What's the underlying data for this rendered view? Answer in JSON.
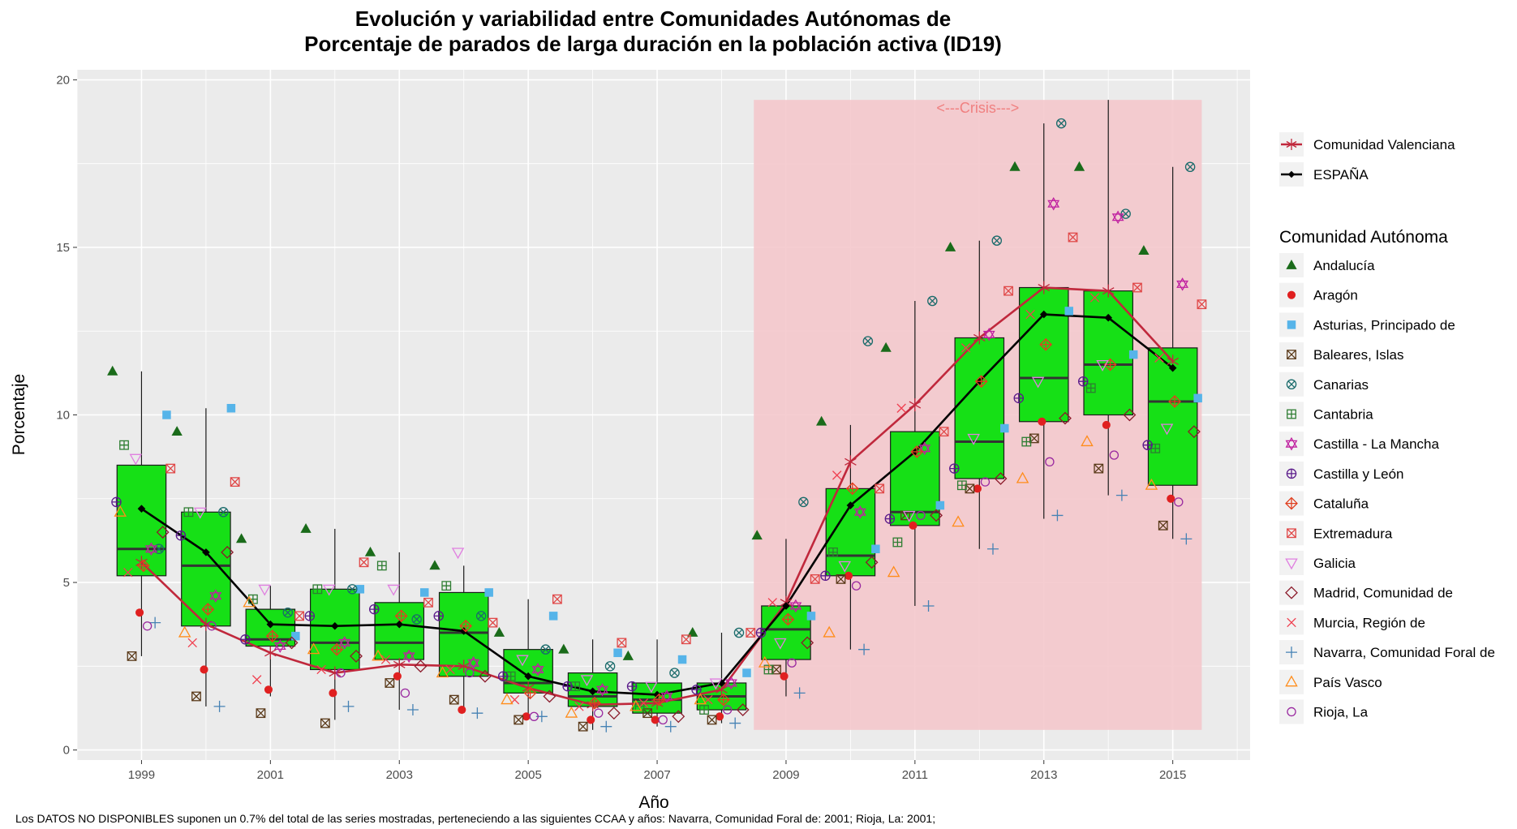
{
  "chart_data": {
    "type": "boxplot",
    "title": "Evolución y variabilidad entre Comunidades Autónomas de",
    "subtitle": "Porcentaje de parados de larga duración en la población activa (ID19)",
    "xlabel": "Año",
    "ylabel": "Porcentaje",
    "x_ticks": [
      "1999",
      "2001",
      "2003",
      "2005",
      "2007",
      "2009",
      "2011",
      "2013",
      "2015"
    ],
    "y_ticks": [
      0,
      5,
      10,
      15,
      20
    ],
    "ylim": [
      -0.3,
      20.3
    ],
    "xlim": [
      1998,
      2016.2
    ],
    "grid": true,
    "legend_position": "right",
    "annotation": {
      "text": "<---Crisis--->",
      "x_start": 2008.5,
      "x_end": 2015.45,
      "y_min": 0.6,
      "y_max": 19.4
    },
    "years": [
      1999,
      2000,
      2001,
      2002,
      2003,
      2004,
      2005,
      2006,
      2007,
      2008,
      2009,
      2010,
      2011,
      2012,
      2013,
      2014,
      2015
    ],
    "boxes": [
      {
        "year": 1999,
        "min": 2.8,
        "q1": 5.2,
        "median": 6.0,
        "q3": 8.5,
        "max": 11.3
      },
      {
        "year": 2000,
        "min": 1.3,
        "q1": 3.7,
        "median": 5.5,
        "q3": 7.1,
        "max": 10.2
      },
      {
        "year": 2001,
        "min": 1.6,
        "q1": 3.1,
        "median": 3.3,
        "q3": 4.2,
        "max": 4.9
      },
      {
        "year": 2002,
        "min": 0.9,
        "q1": 2.4,
        "median": 3.2,
        "q3": 4.8,
        "max": 6.6
      },
      {
        "year": 2003,
        "min": 1.2,
        "q1": 2.7,
        "median": 3.2,
        "q3": 4.4,
        "max": 5.9
      },
      {
        "year": 2004,
        "min": 1.2,
        "q1": 2.2,
        "median": 3.5,
        "q3": 4.7,
        "max": 5.5
      },
      {
        "year": 2005,
        "min": 0.9,
        "q1": 1.7,
        "median": 2.0,
        "q3": 3.0,
        "max": 4.5
      },
      {
        "year": 2006,
        "min": 0.6,
        "q1": 1.3,
        "median": 1.6,
        "q3": 2.3,
        "max": 3.3
      },
      {
        "year": 2007,
        "min": 0.7,
        "q1": 1.1,
        "median": 1.5,
        "q3": 2.0,
        "max": 3.3
      },
      {
        "year": 2008,
        "min": 0.8,
        "q1": 1.2,
        "median": 1.6,
        "q3": 2.0,
        "max": 3.5
      },
      {
        "year": 2009,
        "min": 1.6,
        "q1": 2.7,
        "median": 3.6,
        "q3": 4.3,
        "max": 6.3
      },
      {
        "year": 2010,
        "min": 3.0,
        "q1": 5.2,
        "median": 5.8,
        "q3": 7.8,
        "max": 9.7
      },
      {
        "year": 2011,
        "min": 4.3,
        "q1": 6.7,
        "median": 7.1,
        "q3": 9.5,
        "max": 13.4
      },
      {
        "year": 2012,
        "min": 6.0,
        "q1": 8.1,
        "median": 9.2,
        "q3": 12.3,
        "max": 15.2
      },
      {
        "year": 2013,
        "min": 6.9,
        "q1": 9.8,
        "median": 11.1,
        "q3": 13.8,
        "max": 18.7
      },
      {
        "year": 2014,
        "min": 7.6,
        "q1": 10.0,
        "median": 11.5,
        "q3": 13.7,
        "max": 19.4
      },
      {
        "year": 2015,
        "min": 6.3,
        "q1": 7.9,
        "median": 10.4,
        "q3": 12.0,
        "max": 17.4
      }
    ],
    "series": [
      {
        "name": "ESPAÑA",
        "color": "#000000",
        "values": [
          7.2,
          5.9,
          3.75,
          3.7,
          3.75,
          3.55,
          2.2,
          1.75,
          1.65,
          2.0,
          4.3,
          7.3,
          8.9,
          11.0,
          13.0,
          12.9,
          11.4
        ]
      },
      {
        "name": "Comunidad Valenciana",
        "color": "#c0283c",
        "values": [
          5.6,
          3.75,
          2.9,
          2.3,
          2.55,
          2.5,
          1.85,
          1.35,
          1.4,
          1.8,
          4.4,
          8.6,
          10.3,
          12.3,
          13.8,
          13.7,
          11.6
        ]
      }
    ],
    "regions": [
      {
        "name": "Andalucía",
        "shape": "triangle-filled",
        "color": "#1a6b1a",
        "values": [
          11.3,
          9.5,
          6.3,
          6.6,
          5.9,
          5.5,
          3.5,
          3.0,
          2.8,
          3.5,
          6.4,
          9.8,
          12.0,
          15.0,
          17.4,
          17.4,
          14.9
        ]
      },
      {
        "name": "Aragón",
        "shape": "circle-filled",
        "color": "#e02020",
        "values": [
          4.1,
          2.4,
          1.8,
          1.7,
          2.2,
          1.2,
          1.0,
          0.9,
          0.9,
          1.0,
          2.2,
          5.2,
          6.7,
          7.8,
          9.8,
          9.7,
          7.5
        ]
      },
      {
        "name": "Asturias, Principado de",
        "shape": "square-filled",
        "color": "#56b4e9",
        "values": [
          10.0,
          10.2,
          3.4,
          4.8,
          4.7,
          4.7,
          4.0,
          2.9,
          2.7,
          2.3,
          4.0,
          6.0,
          7.3,
          9.6,
          13.1,
          11.8,
          10.5
        ]
      },
      {
        "name": "Baleares, Islas",
        "shape": "square-x",
        "color": "#5a3a1a",
        "values": [
          2.8,
          1.6,
          1.1,
          0.8,
          2.0,
          1.5,
          0.9,
          0.7,
          1.1,
          0.9,
          2.4,
          5.1,
          7.0,
          7.8,
          9.3,
          8.4,
          6.7
        ]
      },
      {
        "name": "Canarias",
        "shape": "circle-x",
        "color": "#1a6b6b",
        "values": [
          6.0,
          7.1,
          4.1,
          4.8,
          3.9,
          4.0,
          3.0,
          2.5,
          2.3,
          3.5,
          7.4,
          12.2,
          13.4,
          15.2,
          18.7,
          16.0,
          17.4
        ]
      },
      {
        "name": "Cantabria",
        "shape": "square-plus",
        "color": "#2e7d32",
        "values": [
          9.1,
          7.1,
          4.5,
          4.8,
          5.5,
          4.9,
          2.2,
          1.9,
          1.3,
          1.2,
          2.4,
          5.9,
          6.2,
          7.9,
          9.2,
          10.8,
          9.0
        ]
      },
      {
        "name": "Castilla - La Mancha",
        "shape": "star-of-david",
        "color": "#c020a0",
        "values": [
          6.0,
          4.6,
          3.1,
          3.2,
          2.8,
          2.6,
          2.4,
          1.8,
          1.6,
          2.0,
          4.3,
          7.1,
          9.0,
          12.4,
          16.3,
          15.9,
          13.9
        ]
      },
      {
        "name": "Castilla y León",
        "shape": "circle-plus",
        "color": "#5a1a8a",
        "values": [
          7.4,
          6.4,
          3.3,
          4.0,
          4.2,
          4.0,
          2.2,
          1.9,
          1.9,
          1.8,
          3.5,
          5.2,
          6.9,
          8.4,
          10.5,
          11.0,
          9.1
        ]
      },
      {
        "name": "Cataluña",
        "shape": "diamond-plus",
        "color": "#e04020",
        "values": [
          5.5,
          4.2,
          3.4,
          3.0,
          4.0,
          3.7,
          1.7,
          1.4,
          1.5,
          1.5,
          3.9,
          7.8,
          8.9,
          11.0,
          12.1,
          11.5,
          10.4
        ]
      },
      {
        "name": "Extremadura",
        "shape": "square-x",
        "color": "#e04848",
        "values": [
          8.4,
          8.0,
          4.0,
          5.6,
          4.4,
          3.8,
          4.5,
          3.2,
          3.3,
          3.5,
          5.1,
          7.8,
          9.5,
          13.7,
          15.3,
          13.8,
          13.3
        ]
      },
      {
        "name": "Galicia",
        "shape": "triangle-down",
        "color": "#e080e0",
        "values": [
          8.7,
          7.1,
          4.8,
          4.8,
          4.8,
          5.9,
          2.7,
          2.1,
          1.9,
          2.0,
          3.2,
          5.5,
          7.0,
          9.3,
          11.0,
          11.5,
          9.6
        ]
      },
      {
        "name": "Madrid, Comunidad de",
        "shape": "diamond",
        "color": "#8b1a2a",
        "values": [
          6.5,
          5.9,
          3.2,
          2.8,
          2.5,
          2.2,
          1.6,
          1.1,
          1.0,
          1.2,
          3.2,
          5.6,
          7.0,
          8.1,
          9.9,
          10.0,
          9.5
        ]
      },
      {
        "name": "Murcia, Región de",
        "shape": "x",
        "color": "#f04050",
        "values": [
          5.3,
          3.2,
          2.1,
          2.4,
          2.7,
          2.4,
          1.5,
          1.3,
          1.4,
          1.5,
          4.4,
          8.2,
          10.2,
          12.0,
          13.0,
          13.5,
          11.7
        ]
      },
      {
        "name": "Navarra, Comunidad Foral de",
        "shape": "plus",
        "color": "#4682b4",
        "values": [
          3.8,
          1.3,
          null,
          1.3,
          1.2,
          1.1,
          1.0,
          0.7,
          0.7,
          0.8,
          1.7,
          3.0,
          4.3,
          6.0,
          7.0,
          7.6,
          6.3
        ]
      },
      {
        "name": "País Vasco",
        "shape": "triangle-open",
        "color": "#ff8c1a",
        "values": [
          7.1,
          3.5,
          4.4,
          3.0,
          2.8,
          2.3,
          1.5,
          1.1,
          1.3,
          1.5,
          2.6,
          3.5,
          5.3,
          6.8,
          8.1,
          9.2,
          7.9
        ]
      },
      {
        "name": "Rioja, La",
        "shape": "circle-open",
        "color": "#9a2aa0",
        "values": [
          3.7,
          3.7,
          null,
          2.3,
          1.7,
          2.3,
          1.0,
          1.1,
          0.9,
          1.2,
          2.6,
          4.9,
          7.0,
          8.0,
          8.6,
          8.8,
          7.4
        ]
      }
    ]
  },
  "legend": {
    "top_items": [
      "Comunidad Valenciana",
      "ESPAÑA"
    ],
    "title": "Comunidad Autónoma"
  },
  "footnote": "Los DATOS NO DISPONIBLES suponen un 0.7% del total de las series mostradas, perteneciendo a las siguientes CCAA y años: Navarra, Comunidad Foral de: 2001; Rioja, La: 2001;",
  "colors": {
    "panel": "#ebebeb",
    "grid": "#ffffff",
    "box_fill": "#16e016",
    "crisis_band": "#f4c8cc"
  }
}
